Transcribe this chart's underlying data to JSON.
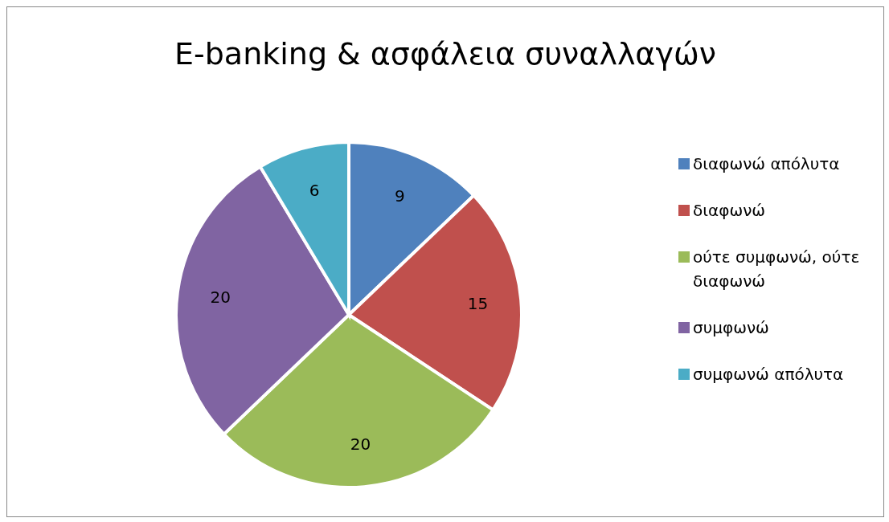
{
  "chart_data": {
    "type": "pie",
    "title": "E-banking & ασφάλεια συναλλαγών",
    "categories": [
      "διαφωνώ απόλυτα",
      "διαφωνώ",
      "ούτε συμφωνώ, ούτε διαφωνώ",
      "συμφωνώ",
      "συμφωνώ απόλυτα"
    ],
    "values": [
      9,
      15,
      20,
      20,
      6
    ],
    "colors": [
      "#4f81bd",
      "#c0504d",
      "#9bbb59",
      "#8064a2",
      "#4bacc6"
    ],
    "data_labels": true,
    "legend": "right"
  }
}
